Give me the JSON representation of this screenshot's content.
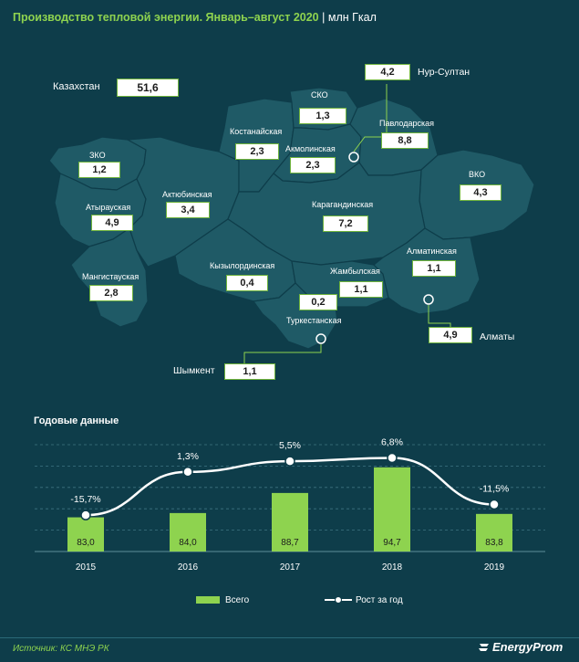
{
  "title": {
    "main": "Производство тепловой энергии. Январь–август 2020",
    "separator": "|",
    "unit": "млн Гкал"
  },
  "total": {
    "label": "Казахстан",
    "value": "51,6"
  },
  "regions": [
    {
      "id": "zko",
      "name": "ЗКО",
      "value": "1,2"
    },
    {
      "id": "atyrau",
      "name": "Атырауская",
      "value": "4,9"
    },
    {
      "id": "mangistau",
      "name": "Мангистауская",
      "value": "2,8"
    },
    {
      "id": "aktobe",
      "name": "Актюбинская",
      "value": "3,4"
    },
    {
      "id": "kostanay",
      "name": "Костанайская",
      "value": "2,3"
    },
    {
      "id": "sko",
      "name": "СКО",
      "value": "1,3"
    },
    {
      "id": "akmola",
      "name": "Акмолинская",
      "value": "2,3"
    },
    {
      "id": "pavlodar",
      "name": "Павлодарская",
      "value": "8,8"
    },
    {
      "id": "vko",
      "name": "ВКО",
      "value": "4,3"
    },
    {
      "id": "karaganda",
      "name": "Карагандинская",
      "value": "7,2"
    },
    {
      "id": "kyzylorda",
      "name": "Кызылординская",
      "value": "0,4"
    },
    {
      "id": "zhambyl",
      "name": "Жамбылская",
      "value": "1,1"
    },
    {
      "id": "almaty-obl",
      "name": "Алматинская",
      "value": "1,1"
    },
    {
      "id": "turkestan",
      "name": "Туркестанская",
      "value": "0,2"
    }
  ],
  "cities": [
    {
      "id": "nur-sultan",
      "name": "Нур-Султан",
      "value": "4,2"
    },
    {
      "id": "almaty",
      "name": "Алматы",
      "value": "4,9"
    },
    {
      "id": "shymkent",
      "name": "Шымкент",
      "value": "1,1"
    }
  ],
  "annual_title": "Годовые данные",
  "chart_data": {
    "type": "bar",
    "categories": [
      "2015",
      "2016",
      "2017",
      "2018",
      "2019"
    ],
    "series": [
      {
        "name": "Всего",
        "type": "bar",
        "values": [
          83.0,
          84.0,
          88.7,
          94.7,
          83.8
        ],
        "labels": [
          "83,0",
          "84,0",
          "88,7",
          "94,7",
          "83,8"
        ],
        "color": "#8ed34f"
      },
      {
        "name": "Рост за год",
        "type": "line",
        "values": [
          -15.7,
          1.3,
          5.5,
          6.8,
          -11.5
        ],
        "labels": [
          "-15,7%",
          "1,3%",
          "5,5%",
          "6,8%",
          "-11,5%"
        ],
        "color": "#ffffff"
      }
    ],
    "bar_range": [
      75,
      100
    ],
    "growth_range": [
      -30,
      12
    ],
    "grid": true,
    "legend": "bottom"
  },
  "legend": {
    "bar": "Всего",
    "line": "Рост за год"
  },
  "source": "Источник: КС МНЭ РК",
  "logo": "EnergyProm",
  "colors": {
    "background": "#0e3d4a",
    "map_fill": "#1f5a66",
    "accent": "#8ed34f",
    "border": "#6fb33c"
  }
}
